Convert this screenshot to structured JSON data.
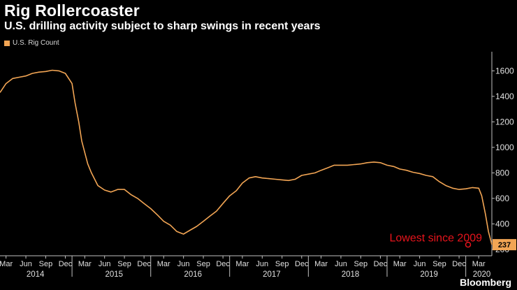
{
  "colors": {
    "background": "#000000",
    "series": "#f2a554",
    "annotation": "#e8141c",
    "grid": "#555555"
  },
  "brand": "Bloomberg",
  "chart_data": {
    "type": "line",
    "title": "Rig Rollercoaster",
    "subtitle": "U.S. drilling activity subject to sharp swings in recent years",
    "legend_position": "top-left",
    "grid": false,
    "xlim": [
      "2014-02-01",
      "2020-05-01"
    ],
    "ylim": [
      150,
      1750
    ],
    "y_ticks": [
      200,
      400,
      600,
      800,
      1000,
      1200,
      1400,
      1600
    ],
    "x_tick_labels": [
      {
        "date": "2014-03-01",
        "label": "Mar"
      },
      {
        "date": "2014-06-01",
        "label": "Jun"
      },
      {
        "date": "2014-09-01",
        "label": "Sep"
      },
      {
        "date": "2014-12-01",
        "label": "Dec"
      },
      {
        "date": "2015-03-01",
        "label": "Mar"
      },
      {
        "date": "2015-06-01",
        "label": "Jun"
      },
      {
        "date": "2015-09-01",
        "label": "Sep"
      },
      {
        "date": "2015-12-01",
        "label": "Dec"
      },
      {
        "date": "2016-03-01",
        "label": "Mar"
      },
      {
        "date": "2016-06-01",
        "label": "Jun"
      },
      {
        "date": "2016-09-01",
        "label": "Sep"
      },
      {
        "date": "2016-12-01",
        "label": "Dec"
      },
      {
        "date": "2017-03-01",
        "label": "Mar"
      },
      {
        "date": "2017-06-01",
        "label": "Jun"
      },
      {
        "date": "2017-09-01",
        "label": "Sep"
      },
      {
        "date": "2017-12-01",
        "label": "Dec"
      },
      {
        "date": "2018-03-01",
        "label": "Mar"
      },
      {
        "date": "2018-06-01",
        "label": "Jun"
      },
      {
        "date": "2018-09-01",
        "label": "Sep"
      },
      {
        "date": "2018-12-01",
        "label": "Dec"
      },
      {
        "date": "2019-03-01",
        "label": "Mar"
      },
      {
        "date": "2019-06-01",
        "label": "Jun"
      },
      {
        "date": "2019-09-01",
        "label": "Sep"
      },
      {
        "date": "2019-12-01",
        "label": "Dec"
      },
      {
        "date": "2020-03-01",
        "label": "Mar"
      }
    ],
    "year_labels": [
      {
        "date": "2014-07-15",
        "label": "2014"
      },
      {
        "date": "2015-07-15",
        "label": "2015"
      },
      {
        "date": "2016-07-15",
        "label": "2016"
      },
      {
        "date": "2017-07-15",
        "label": "2017"
      },
      {
        "date": "2018-07-15",
        "label": "2018"
      },
      {
        "date": "2019-07-15",
        "label": "2019"
      },
      {
        "date": "2020-03-15",
        "label": "2020"
      }
    ],
    "series": [
      {
        "name": "U.S. Rig Count",
        "points": [
          [
            "2014-02-01",
            1430
          ],
          [
            "2014-03-01",
            1500
          ],
          [
            "2014-04-01",
            1540
          ],
          [
            "2014-05-01",
            1550
          ],
          [
            "2014-06-01",
            1560
          ],
          [
            "2014-07-01",
            1580
          ],
          [
            "2014-08-01",
            1590
          ],
          [
            "2014-09-01",
            1595
          ],
          [
            "2014-10-01",
            1605
          ],
          [
            "2014-11-01",
            1600
          ],
          [
            "2014-12-01",
            1580
          ],
          [
            "2015-01-01",
            1500
          ],
          [
            "2015-01-15",
            1350
          ],
          [
            "2015-02-01",
            1200
          ],
          [
            "2015-02-15",
            1050
          ],
          [
            "2015-03-01",
            960
          ],
          [
            "2015-03-15",
            870
          ],
          [
            "2015-04-01",
            800
          ],
          [
            "2015-05-01",
            700
          ],
          [
            "2015-06-01",
            665
          ],
          [
            "2015-07-01",
            650
          ],
          [
            "2015-08-01",
            670
          ],
          [
            "2015-09-01",
            670
          ],
          [
            "2015-10-01",
            630
          ],
          [
            "2015-11-01",
            600
          ],
          [
            "2015-12-01",
            560
          ],
          [
            "2016-01-01",
            520
          ],
          [
            "2016-02-01",
            470
          ],
          [
            "2016-03-01",
            420
          ],
          [
            "2016-04-01",
            390
          ],
          [
            "2016-05-01",
            340
          ],
          [
            "2016-06-01",
            320
          ],
          [
            "2016-07-01",
            350
          ],
          [
            "2016-08-01",
            380
          ],
          [
            "2016-09-01",
            420
          ],
          [
            "2016-10-01",
            460
          ],
          [
            "2016-11-01",
            500
          ],
          [
            "2016-12-01",
            560
          ],
          [
            "2017-01-01",
            620
          ],
          [
            "2017-02-01",
            660
          ],
          [
            "2017-03-01",
            720
          ],
          [
            "2017-04-01",
            760
          ],
          [
            "2017-05-01",
            770
          ],
          [
            "2017-06-01",
            760
          ],
          [
            "2017-07-01",
            755
          ],
          [
            "2017-08-01",
            750
          ],
          [
            "2017-09-01",
            745
          ],
          [
            "2017-10-01",
            740
          ],
          [
            "2017-11-01",
            750
          ],
          [
            "2017-12-01",
            780
          ],
          [
            "2018-01-01",
            790
          ],
          [
            "2018-02-01",
            800
          ],
          [
            "2018-03-01",
            820
          ],
          [
            "2018-04-01",
            840
          ],
          [
            "2018-05-01",
            860
          ],
          [
            "2018-06-01",
            860
          ],
          [
            "2018-07-01",
            860
          ],
          [
            "2018-08-01",
            865
          ],
          [
            "2018-09-01",
            870
          ],
          [
            "2018-10-01",
            880
          ],
          [
            "2018-11-01",
            885
          ],
          [
            "2018-12-01",
            880
          ],
          [
            "2019-01-01",
            860
          ],
          [
            "2019-02-01",
            850
          ],
          [
            "2019-03-01",
            830
          ],
          [
            "2019-04-01",
            820
          ],
          [
            "2019-05-01",
            805
          ],
          [
            "2019-06-01",
            795
          ],
          [
            "2019-07-01",
            780
          ],
          [
            "2019-08-01",
            770
          ],
          [
            "2019-09-01",
            730
          ],
          [
            "2019-10-01",
            700
          ],
          [
            "2019-11-01",
            680
          ],
          [
            "2019-12-01",
            670
          ],
          [
            "2020-01-01",
            675
          ],
          [
            "2020-02-01",
            685
          ],
          [
            "2020-03-01",
            680
          ],
          [
            "2020-03-15",
            620
          ],
          [
            "2020-04-01",
            480
          ],
          [
            "2020-04-15",
            340
          ],
          [
            "2020-05-01",
            237
          ]
        ]
      }
    ],
    "last_value": {
      "date": "2020-05-01",
      "value": 237,
      "label": "237"
    },
    "annotations": [
      {
        "text": "Lowest since 2009",
        "date": "2019-08-15",
        "value": 290
      }
    ]
  }
}
